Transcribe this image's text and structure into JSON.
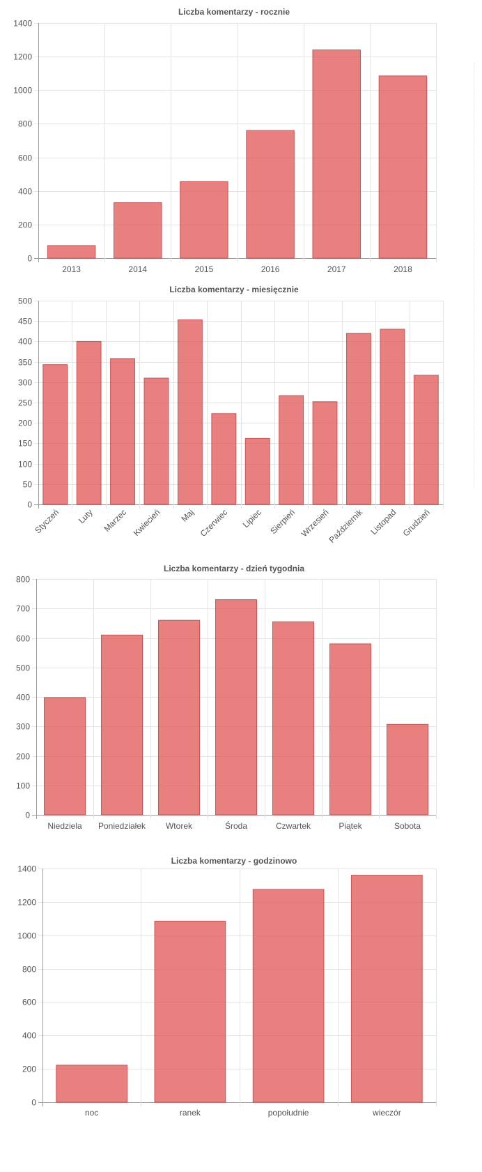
{
  "chart_data": [
    {
      "type": "bar",
      "title": "Liczba komentarzy - rocznie",
      "categories": [
        "2013",
        "2014",
        "2015",
        "2016",
        "2017",
        "2018"
      ],
      "values": [
        75,
        330,
        455,
        760,
        1240,
        1085
      ],
      "ylim": [
        0,
        1400
      ],
      "yticks": [
        0,
        200,
        400,
        600,
        800,
        1000,
        1200,
        1400
      ],
      "xlabel": "",
      "ylabel": "",
      "grid": true,
      "rotate_labels": false,
      "color": "#e25c5c"
    },
    {
      "type": "bar",
      "title": "Liczba komentarzy - miesięcznie",
      "categories": [
        "Styczeń",
        "Luty",
        "Marzec",
        "Kwiecień",
        "Maj",
        "Czerwiec",
        "Lipiec",
        "Sierpień",
        "Wrzesień",
        "Październik",
        "Listopad",
        "Grudzień"
      ],
      "values": [
        343,
        400,
        358,
        310,
        453,
        223,
        162,
        267,
        252,
        420,
        430,
        317
      ],
      "ylim": [
        0,
        500
      ],
      "yticks": [
        0,
        50,
        100,
        150,
        200,
        250,
        300,
        350,
        400,
        450,
        500
      ],
      "xlabel": "",
      "ylabel": "",
      "grid": true,
      "rotate_labels": true,
      "color": "#e25c5c"
    },
    {
      "type": "bar",
      "title": "Liczba komentarzy - dzień tygodnia",
      "categories": [
        "Niedziela",
        "Poniedziałek",
        "Wtorek",
        "Środa",
        "Czwartek",
        "Piątek",
        "Sobota"
      ],
      "values": [
        398,
        610,
        660,
        730,
        655,
        580,
        307
      ],
      "ylim": [
        0,
        800
      ],
      "yticks": [
        0,
        100,
        200,
        300,
        400,
        500,
        600,
        700,
        800
      ],
      "xlabel": "",
      "ylabel": "",
      "grid": true,
      "rotate_labels": false,
      "color": "#e25c5c"
    },
    {
      "type": "bar",
      "title": "Liczba komentarzy - godzinowo",
      "categories": [
        "noc",
        "ranek",
        "popołudnie",
        "wieczór"
      ],
      "values": [
        222,
        1085,
        1275,
        1360
      ],
      "ylim": [
        0,
        1400
      ],
      "yticks": [
        0,
        200,
        400,
        600,
        800,
        1000,
        1200,
        1400
      ],
      "xlabel": "",
      "ylabel": "",
      "grid": true,
      "rotate_labels": false,
      "color": "#e25c5c"
    }
  ]
}
